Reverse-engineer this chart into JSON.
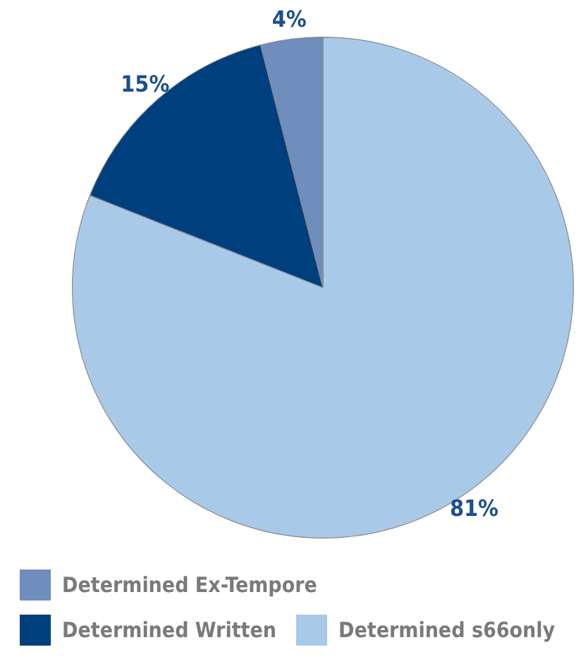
{
  "chart_data": {
    "type": "pie",
    "categories": [
      "Determined Ex-Tempore",
      "Determined Written",
      "Determined s66only"
    ],
    "values": [
      4,
      15,
      81
    ],
    "value_labels": [
      "4%",
      "15%",
      "81%"
    ],
    "colors": [
      "#6f8dbd",
      "#003f7d",
      "#a9c9e9"
    ],
    "legend": "bottom"
  }
}
